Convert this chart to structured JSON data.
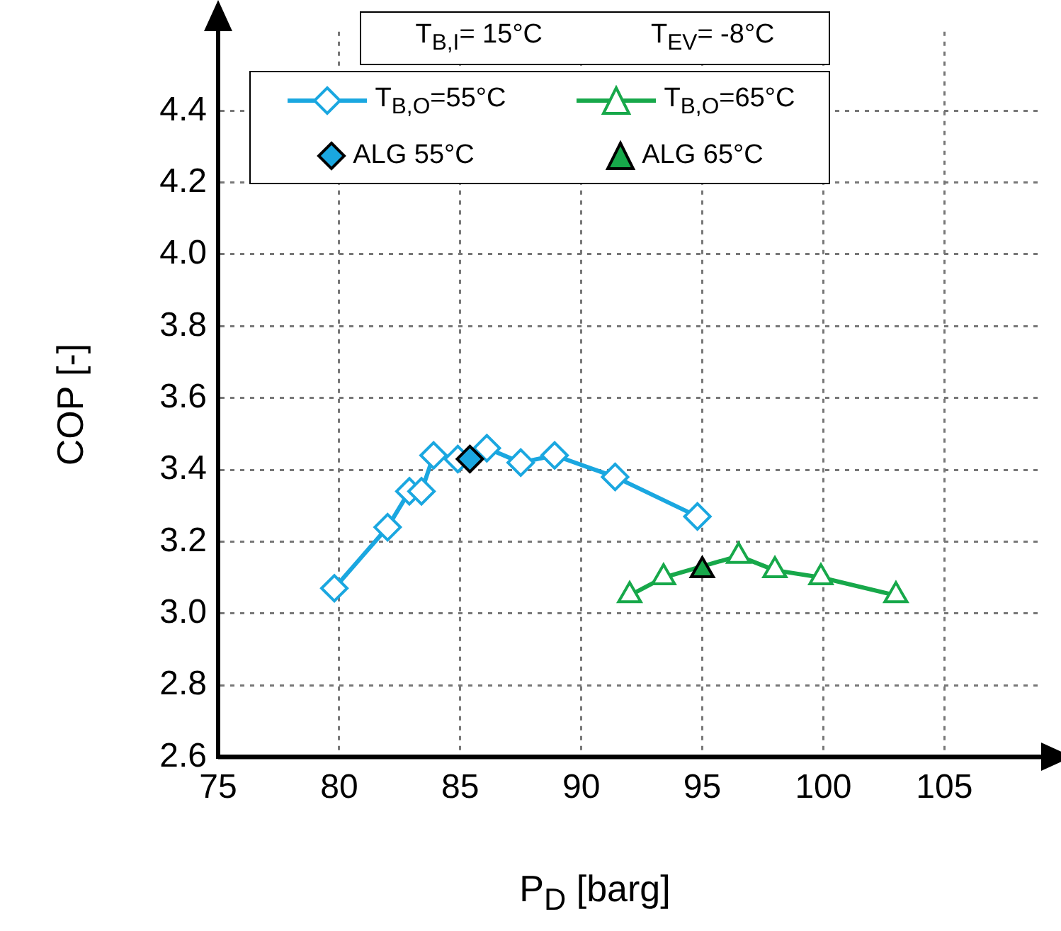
{
  "chart_data": {
    "type": "line",
    "xlabel": "P$_{D}$ [barg]",
    "ylabel": "COP [-]",
    "annotations": [
      "T$_{B,I}$= 15°C",
      "T$_{EV}$= -8°C"
    ],
    "series": [
      {
        "name": "T$_{B,O}$=55°C",
        "type": "line",
        "marker": "diamond",
        "color": "#1aa7e0",
        "x": [
          79.8,
          82.0,
          82.9,
          83.4,
          83.9,
          84.9,
          86.1,
          87.5,
          88.9,
          91.4,
          94.8
        ],
        "values": [
          3.07,
          3.24,
          3.34,
          3.34,
          3.44,
          3.43,
          3.46,
          3.42,
          3.44,
          3.38,
          3.27
        ]
      },
      {
        "name": "T$_{B,O}$=65°C",
        "type": "line",
        "marker": "triangle",
        "color": "#17a84a",
        "x": [
          92.0,
          93.4,
          96.5,
          98.0,
          99.9,
          103.0
        ],
        "values": [
          3.05,
          3.1,
          3.16,
          3.12,
          3.1,
          3.05
        ]
      },
      {
        "name": "ALG 55°C",
        "type": "scatter",
        "marker": "diamond",
        "color": "#1aa7e0",
        "x": [
          85.4
        ],
        "values": [
          3.43
        ]
      },
      {
        "name": "ALG 65°C",
        "type": "scatter",
        "marker": "triangle",
        "color": "#17a84a",
        "x": [
          95.0
        ],
        "values": [
          3.12
        ]
      }
    ],
    "xlim": [
      75,
      109
    ],
    "xticks": [
      75,
      80,
      85,
      90,
      95,
      100,
      105
    ],
    "ylim": [
      2.6,
      4.62
    ],
    "yticks": [
      2.6,
      2.8,
      {
        "value": 3,
        "label": "3.0"
      },
      3.2,
      3.4,
      3.6,
      3.8,
      {
        "value": 4,
        "label": "4.0"
      },
      4.2,
      4.4
    ],
    "grid": true,
    "legend": "top"
  }
}
